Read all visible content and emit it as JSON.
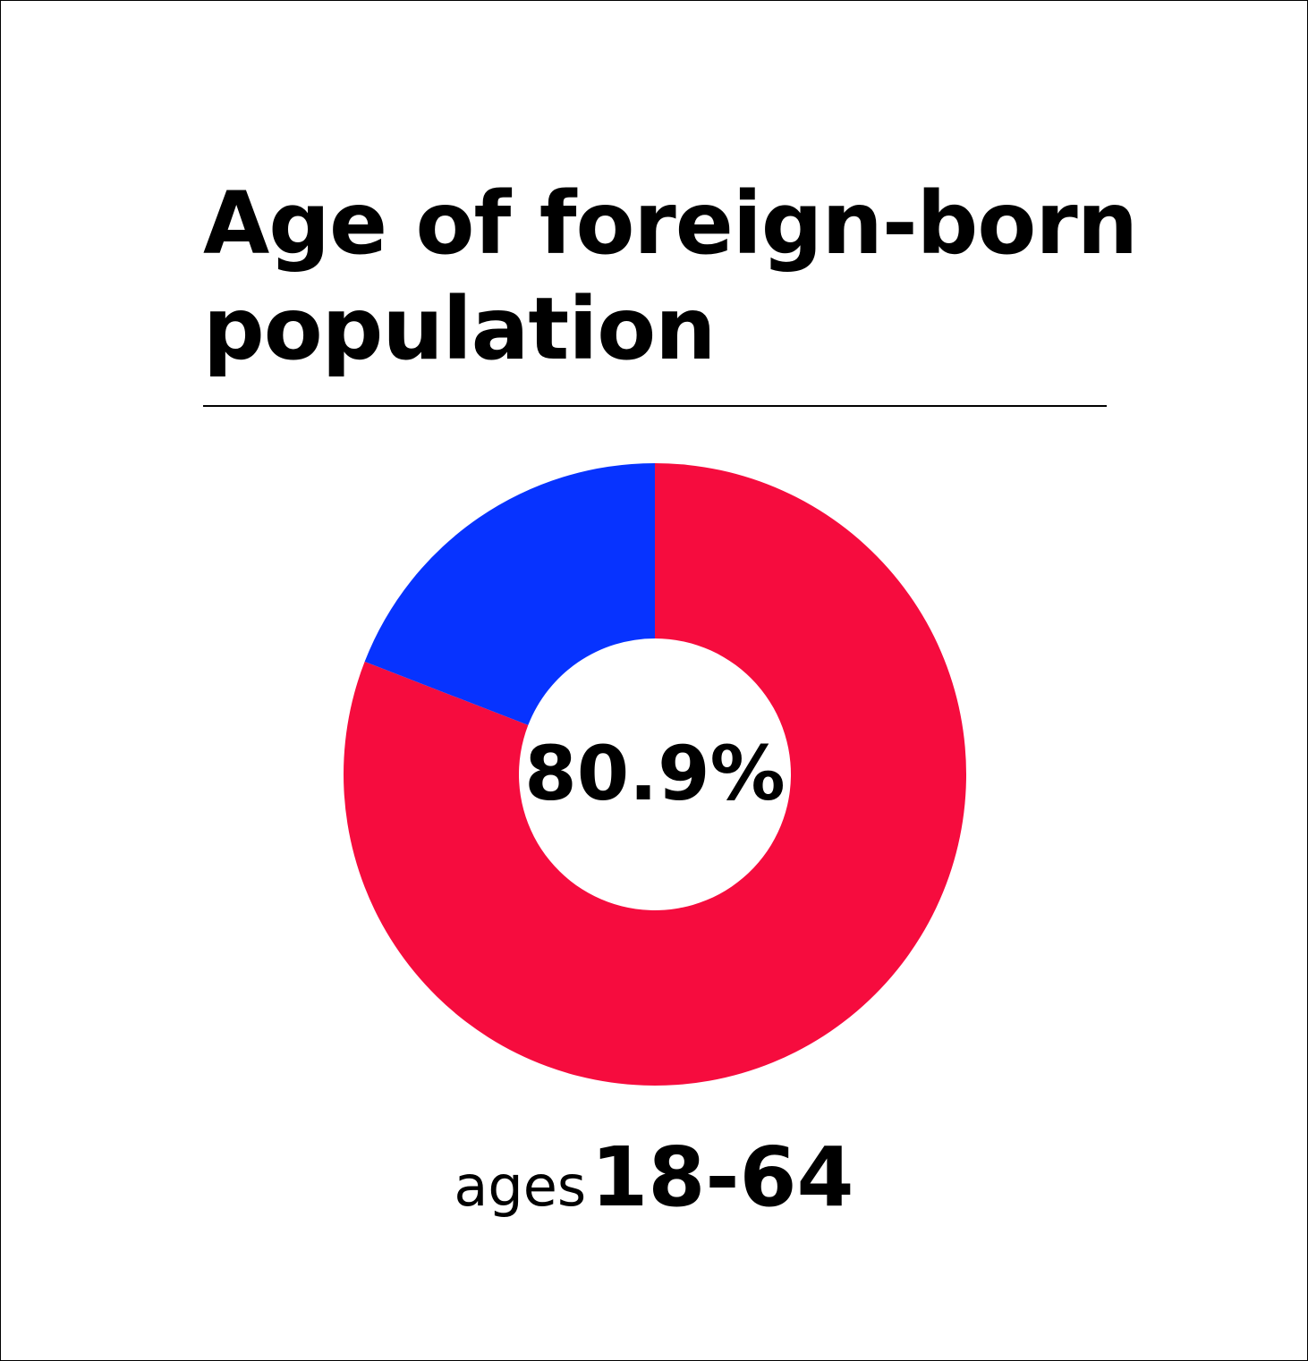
{
  "title": "Age of foreign-born population",
  "caption": {
    "prefix": "ages",
    "range": "18-64"
  },
  "chart_data": {
    "type": "pie",
    "variant": "donut",
    "center_label": "80.9%",
    "slices": [
      {
        "label": "ages 18-64",
        "value": 80.9,
        "color": "#f60c3e"
      },
      {
        "label": "",
        "value": 19.1,
        "color": "#0733ff"
      }
    ]
  },
  "colors": {
    "highlight": "#f60c3e",
    "other": "#0733ff",
    "text": "#000000",
    "background": "#ffffff"
  }
}
